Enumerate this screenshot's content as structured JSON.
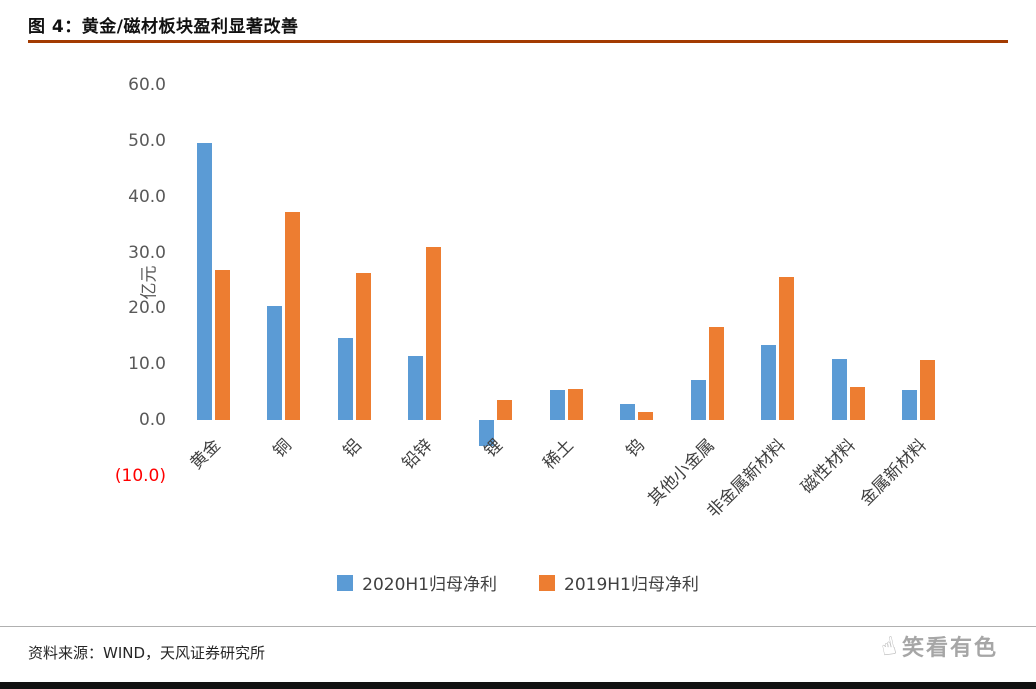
{
  "title": "图 4：黄金/磁材板块盈利显著改善",
  "source_note": "资料来源：WIND，天风证券研究所",
  "watermark": "笑看有色",
  "colors": {
    "series_2020": "#5B9BD5",
    "series_2019": "#ED7D31",
    "title_underline": "#A33B01",
    "negative_tick": "#FF0000",
    "axis_text": "#595959",
    "bottom_bar": "#111111"
  },
  "chart_data": {
    "type": "bar",
    "title": "图 4：黄金/磁材板块盈利显著改善",
    "xlabel": "",
    "ylabel": "亿元",
    "ylim": [
      -10,
      60
    ],
    "grid": false,
    "legend_position": "bottom",
    "yticks": [
      {
        "value": 60,
        "label": "60.0"
      },
      {
        "value": 50,
        "label": "50.0"
      },
      {
        "value": 40,
        "label": "40.0"
      },
      {
        "value": 30,
        "label": "30.0"
      },
      {
        "value": 20,
        "label": "20.0"
      },
      {
        "value": 10,
        "label": "10.0"
      },
      {
        "value": 0,
        "label": "0.0"
      },
      {
        "value": -10,
        "label": "(10.0)",
        "negative": true
      }
    ],
    "categories": [
      "黄金",
      "铜",
      "铝",
      "铅锌",
      "锂",
      "稀土",
      "钨",
      "其他小金属",
      "非金属新材料",
      "磁性材料",
      "金属新材料"
    ],
    "series": [
      {
        "name": "2020H1归母净利",
        "color": "#5B9BD5",
        "values": [
          49.6,
          20.4,
          14.7,
          11.4,
          -4.7,
          5.4,
          2.9,
          7.2,
          13.4,
          10.9,
          5.4
        ]
      },
      {
        "name": "2019H1归母净利",
        "color": "#ED7D31",
        "values": [
          26.8,
          37.3,
          26.3,
          31.0,
          3.6,
          5.6,
          1.4,
          16.7,
          25.6,
          5.9,
          10.7
        ]
      }
    ]
  }
}
